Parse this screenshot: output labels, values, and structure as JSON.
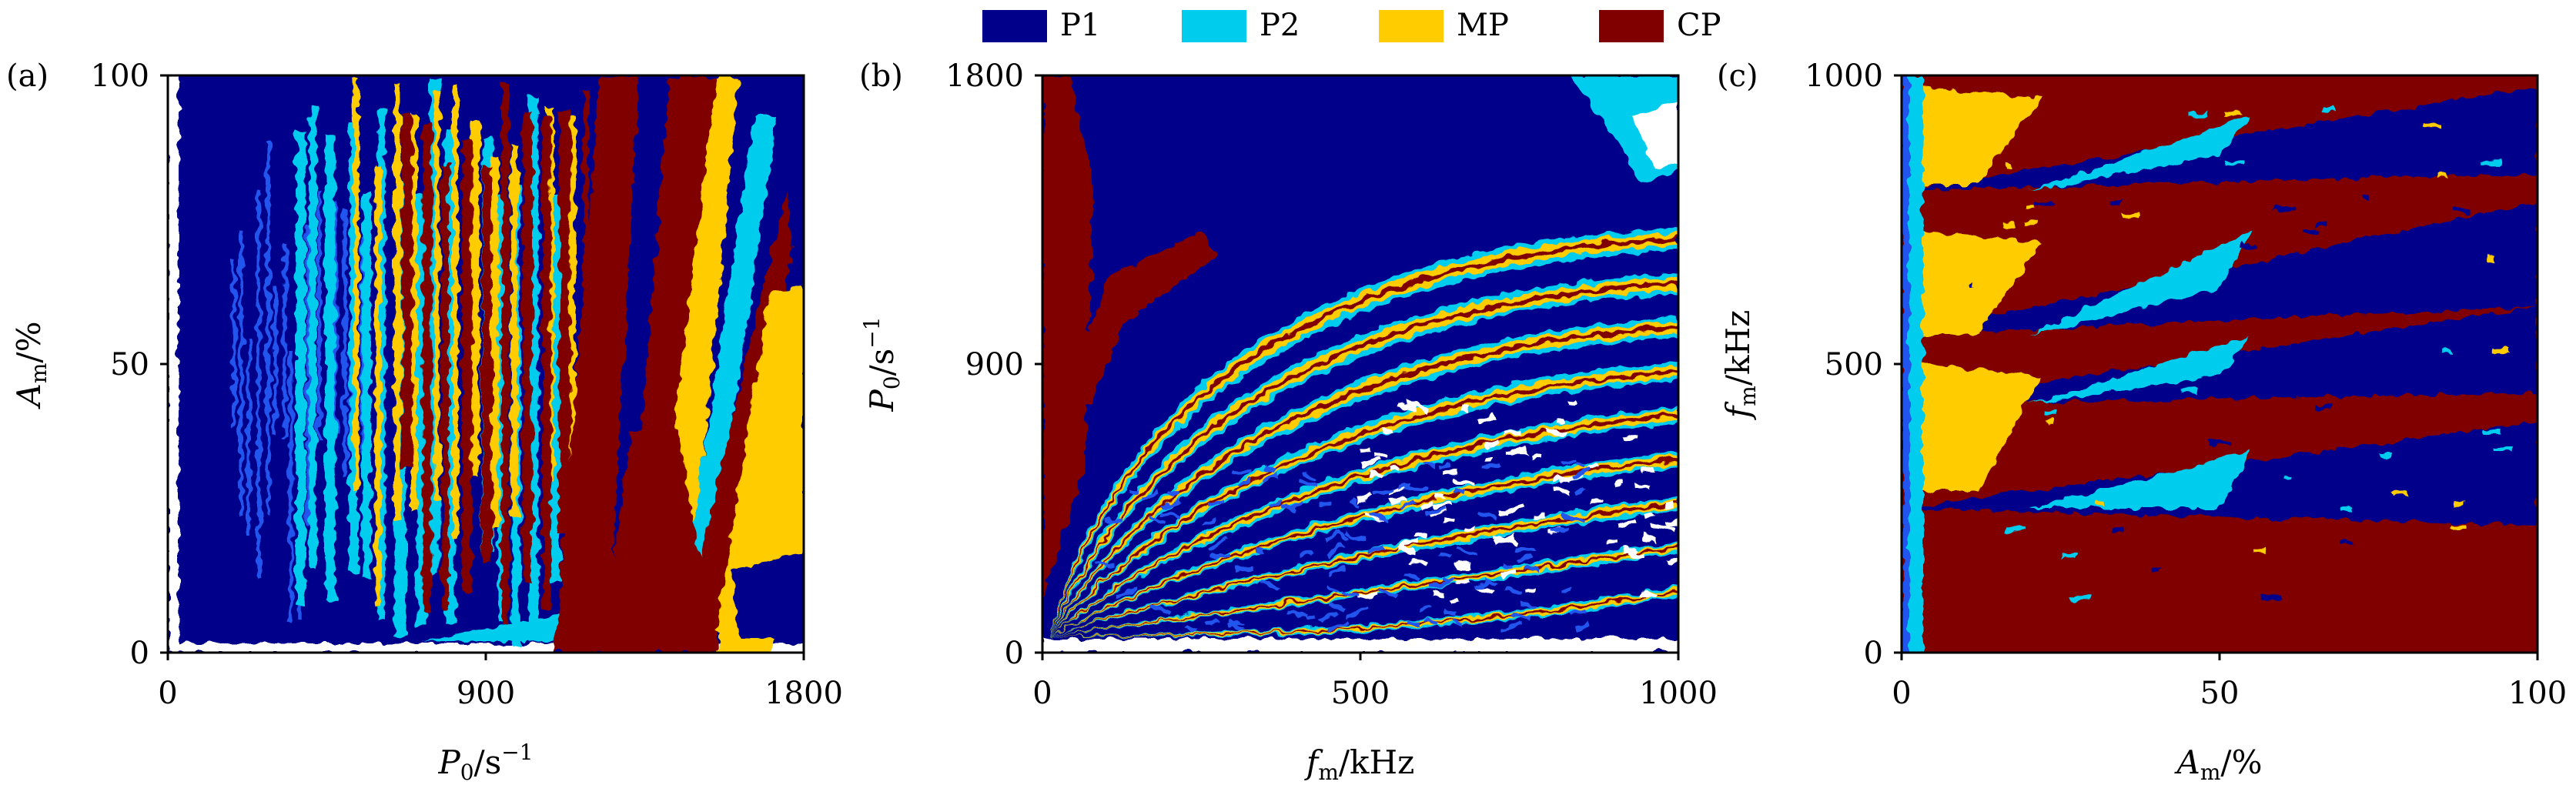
{
  "legend": {
    "placement": "top-center",
    "entries": [
      {
        "label": "P1",
        "color": "#00008B"
      },
      {
        "label": "P2",
        "color": "#00CCEE"
      },
      {
        "label": "MP",
        "color": "#FFCC00"
      },
      {
        "label": "CP",
        "color": "#800000"
      }
    ]
  },
  "colors": {
    "P1": "#00008B",
    "P2": "#00CCEE",
    "MP": "#FFCC00",
    "CP": "#800000",
    "blue_mid": "#2255EE",
    "white": "#FFFFFF"
  },
  "chart_data": [
    {
      "type": "heatmap",
      "panel_label": "(a)",
      "xlabel": {
        "main": "P",
        "sub": "0",
        "unit": "/s",
        "sup": "−1"
      },
      "ylabel": {
        "main": "A",
        "sub": "m",
        "unit": "/%"
      },
      "xlim": [
        0,
        1800
      ],
      "ylim": [
        0,
        100
      ],
      "xticks": [
        0,
        900,
        1800
      ],
      "xtick_labels": [
        "0",
        "900",
        "1800"
      ],
      "yticks": [
        0,
        50,
        100
      ],
      "ytick_labels": [
        "0",
        "50",
        "100"
      ],
      "background_region": "P1",
      "regions": [
        {
          "class": "P2",
          "x": [
            400,
            1100
          ],
          "y": [
            5,
            100
          ]
        },
        {
          "class": "MP",
          "x": [
            850,
            1650
          ],
          "y": [
            5,
            100
          ]
        },
        {
          "class": "CP",
          "x": [
            950,
            1550
          ],
          "y": [
            3,
            100
          ]
        },
        {
          "class": "MP",
          "x": [
            1550,
            1800
          ],
          "y": [
            5,
            45
          ]
        },
        {
          "class": "P1",
          "x": [
            1600,
            1800
          ],
          "y": [
            3,
            15
          ]
        }
      ]
    },
    {
      "type": "heatmap",
      "panel_label": "(b)",
      "xlabel": {
        "main": "f",
        "sub": "m",
        "unit": "/kHz"
      },
      "ylabel": {
        "main": "P",
        "sub": "0",
        "unit": "/s",
        "sup": "−1"
      },
      "xlim": [
        0,
        1000
      ],
      "ylim": [
        0,
        1800
      ],
      "xticks": [
        0,
        500,
        1000
      ],
      "xtick_labels": [
        "0",
        "500",
        "1000"
      ],
      "yticks": [
        0,
        900,
        1800
      ],
      "ytick_labels": [
        "0",
        "900",
        "1800"
      ],
      "background_region": "P1",
      "regions": [
        {
          "class": "CP",
          "x": [
            0,
            200
          ],
          "y": [
            500,
            1800
          ]
        },
        {
          "class": "CP",
          "x": [
            200,
            1000
          ],
          "y": [
            700,
            1500
          ]
        },
        {
          "class": "P2",
          "x": [
            850,
            1000
          ],
          "y": [
            1500,
            1800
          ]
        },
        {
          "class": "CP",
          "x": [
            100,
            1000
          ],
          "y": [
            300,
            900
          ]
        }
      ]
    },
    {
      "type": "heatmap",
      "panel_label": "(c)",
      "xlabel": {
        "main": "A",
        "sub": "m",
        "unit": "/%"
      },
      "ylabel": {
        "main": "f",
        "sub": "m",
        "unit": "/kHz"
      },
      "xlim": [
        0,
        100
      ],
      "ylim": [
        0,
        1000
      ],
      "xticks": [
        0,
        50,
        100
      ],
      "xtick_labels": [
        "0",
        "50",
        "100"
      ],
      "yticks": [
        0,
        500,
        1000
      ],
      "ytick_labels": [
        "0",
        "500",
        "1000"
      ],
      "background_region": "CP",
      "regions": [
        {
          "class": "P2",
          "x": [
            0,
            5
          ],
          "y": [
            0,
            1000
          ]
        },
        {
          "class": "MP",
          "x": [
            5,
            15
          ],
          "y": [
            250,
            1000
          ]
        },
        {
          "class": "P1",
          "x": [
            0,
            100
          ],
          "y": [
            230,
            260
          ]
        },
        {
          "class": "P1",
          "x": [
            0,
            100
          ],
          "y": [
            480,
            540
          ]
        },
        {
          "class": "P1",
          "x": [
            0,
            100
          ],
          "y": [
            730,
            790
          ]
        }
      ]
    }
  ]
}
